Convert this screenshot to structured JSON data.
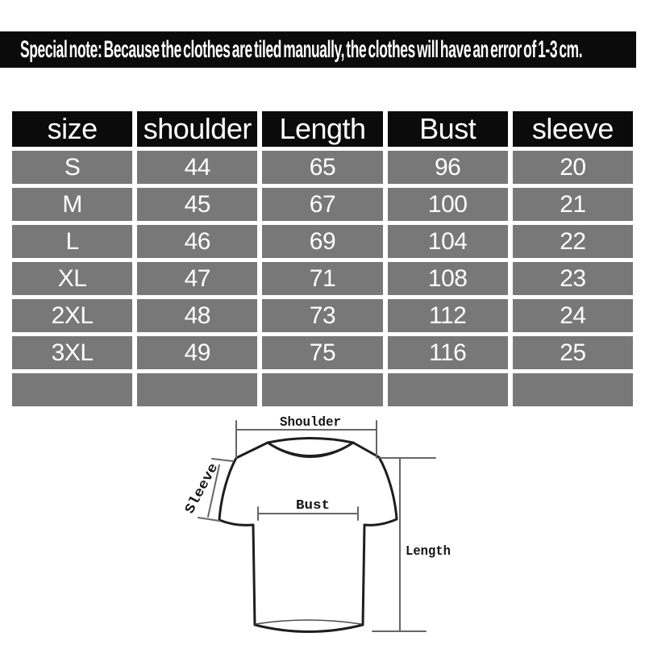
{
  "banner": {
    "text": "Special note: Because the clothes are tiled manually, the clothes will have an error of 1-3 cm."
  },
  "chart_data": {
    "type": "table",
    "columns": [
      "size",
      "shoulder",
      "Length",
      "Bust",
      "sleeve"
    ],
    "rows": [
      [
        "S",
        "44",
        "65",
        "96",
        "20"
      ],
      [
        "M",
        "45",
        "67",
        "100",
        "21"
      ],
      [
        "L",
        "46",
        "69",
        "104",
        "22"
      ],
      [
        "XL",
        "47",
        "71",
        "108",
        "23"
      ],
      [
        "2XL",
        "48",
        "73",
        "112",
        "24"
      ],
      [
        "3XL",
        "49",
        "75",
        "116",
        "25"
      ]
    ],
    "empty_trailing_rows": 1
  },
  "diagram": {
    "labels": {
      "shoulder": "Shoulder",
      "sleeve": "Sleeve",
      "bust": "Bust",
      "length": "Length"
    }
  },
  "colors": {
    "banner_bg": "#0b0b0b",
    "header_bg": "#0b0b0b",
    "cell_bg": "#787878",
    "cell_text": "#ffffff",
    "shirt_outline": "#1e1e1e",
    "measure_line": "#666666"
  }
}
